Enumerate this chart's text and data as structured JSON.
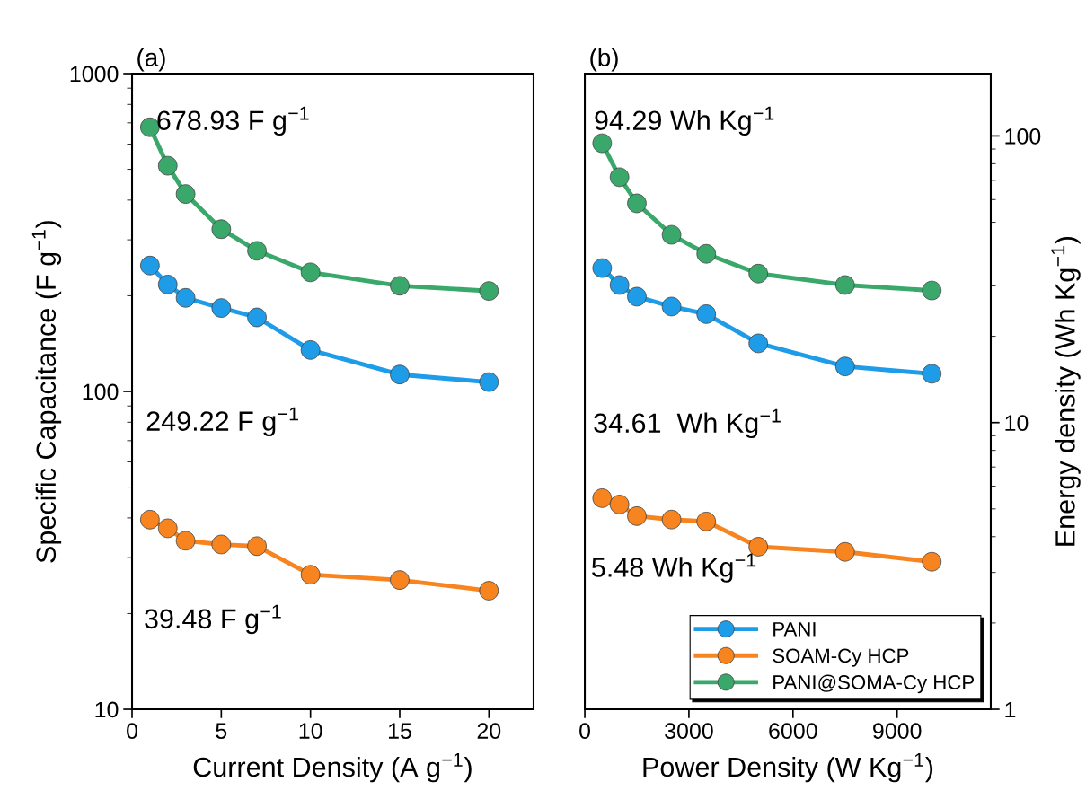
{
  "chart_data": [
    {
      "type": "line",
      "title": "(a)",
      "xlabel": "Current Density (A g$^{−1}$)",
      "ylabel": "Specific Capacitance (F g$^{−1}$)",
      "log": "y",
      "marker": "circle",
      "line_style": "solid",
      "grid": false,
      "legend": false,
      "x": [
        1,
        2,
        3,
        5,
        7,
        10,
        15,
        20
      ],
      "xlim": [
        0,
        22.5
      ],
      "xticks": [
        0,
        5,
        10,
        15,
        20
      ],
      "ylim": [
        10,
        1000
      ],
      "yticks": [
        10,
        100,
        1000
      ],
      "series": [
        {
          "color": "#1e9ce8",
          "values": [
            249,
            217,
            197,
            183,
            171,
            135,
            113,
            107
          ]
        },
        {
          "color": "#f7841e",
          "values": [
            39.5,
            37.1,
            33.9,
            33.0,
            32.6,
            26.5,
            25.5,
            23.6
          ]
        },
        {
          "color": "#3aa86b",
          "values": [
            678,
            513,
            418,
            324,
            277,
            237,
            215,
            207
          ]
        }
      ],
      "annotations": [
        "678.93 F g$^{−1}$",
        "249.22 F g$^{−1}$",
        "39.48 F g$^{−1}$"
      ]
    },
    {
      "type": "line",
      "title": "(b)",
      "xlabel": "Power Density (W Kg$^{−1}$)",
      "y2label": "Energy density (Wh Kg$^{−1}$)",
      "log": "y2",
      "marker": "circle",
      "line_style": "solid",
      "grid": false,
      "legend": "bottom right",
      "x": [
        500,
        1000,
        1500,
        2500,
        3500,
        5000,
        7500,
        10000
      ],
      "xlim": [
        0,
        11700
      ],
      "xticks": [
        0,
        3000,
        6000,
        9000
      ],
      "y2lim": [
        1,
        165
      ],
      "y2ticks": [
        1,
        10,
        100
      ],
      "series": [
        {
          "name": "PANI",
          "axis": "y2",
          "color": "#1e9ce8",
          "values": [
            34.6,
            30.2,
            27.5,
            25.4,
            23.9,
            18.9,
            15.7,
            14.8
          ]
        },
        {
          "name": "SOAM-Cy HCP",
          "axis": "y2",
          "color": "#f7841e",
          "values": [
            5.45,
            5.18,
            4.72,
            4.59,
            4.52,
            3.69,
            3.54,
            3.27
          ]
        },
        {
          "name": "PANI@SOMA-Cy HCP",
          "axis": "y2",
          "color": "#3aa86b",
          "values": [
            94.3,
            71.8,
            58.2,
            45.2,
            38.8,
            33.1,
            30.2,
            28.9
          ]
        }
      ],
      "annotations": [
        "94.29 Wh Kg$^{−1}$",
        "34.61  Wh Kg$^{−1}$",
        "5.48 Wh Kg$^{−1}$"
      ]
    }
  ]
}
